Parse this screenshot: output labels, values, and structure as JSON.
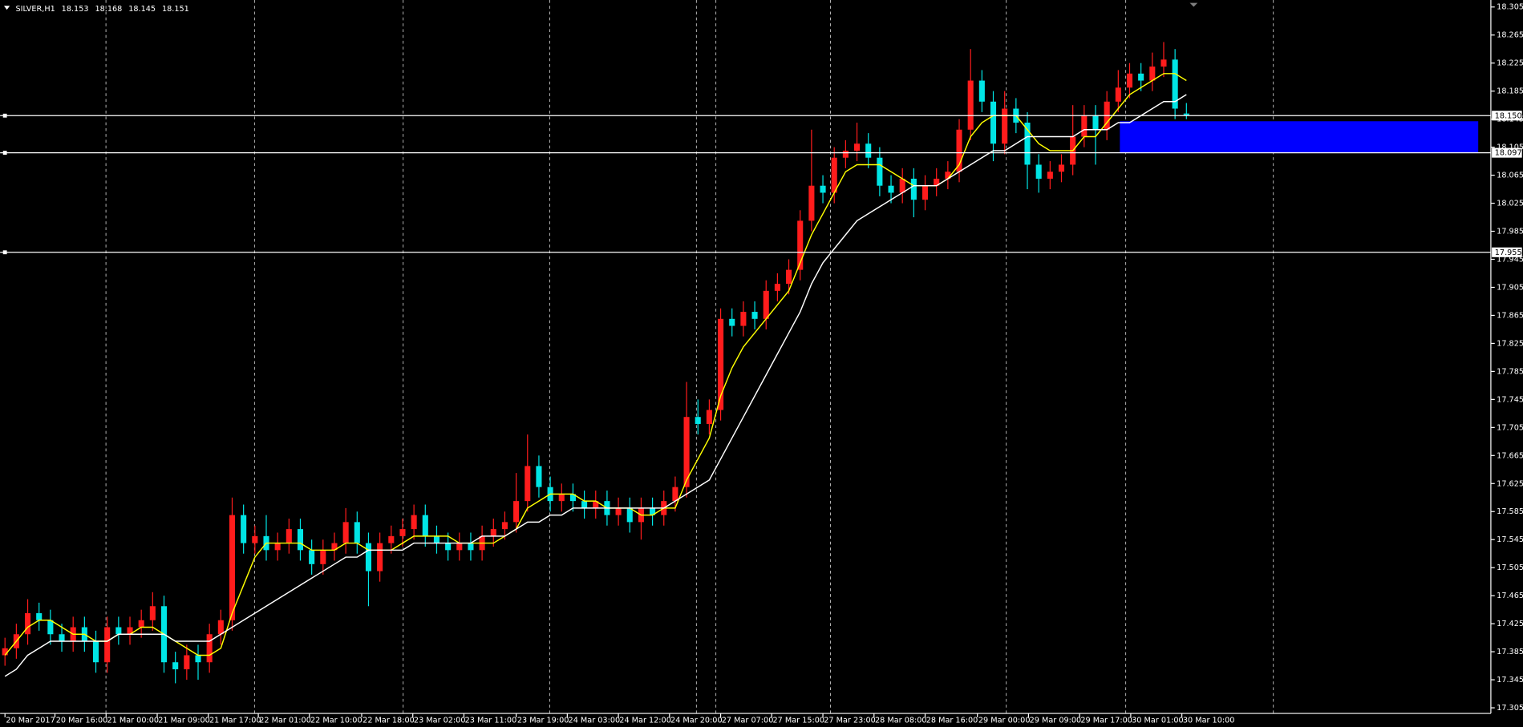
{
  "chart_data": {
    "type": "candlestick",
    "title": "SILVER,H1",
    "up_color": "#ff1c1c",
    "down_color": "#00e5e5",
    "open": [
      17.38,
      17.39,
      17.41,
      17.44,
      17.43,
      17.41,
      17.4,
      17.42,
      17.4,
      17.37,
      17.42,
      17.41,
      17.42,
      17.43,
      17.45,
      17.37,
      17.36,
      17.38,
      17.37,
      17.41,
      17.43,
      17.58,
      17.54,
      17.55,
      17.53,
      17.54,
      17.56,
      17.53,
      17.51,
      17.53,
      17.54,
      17.57,
      17.54,
      17.5,
      17.54,
      17.55,
      17.56,
      17.58,
      17.55,
      17.54,
      17.53,
      17.54,
      17.53,
      17.55,
      17.56,
      17.57,
      17.6,
      17.65,
      17.62,
      17.6,
      17.61,
      17.6,
      17.59,
      17.6,
      17.58,
      17.59,
      17.57,
      17.59,
      17.58,
      17.6,
      17.62,
      17.72,
      17.71,
      17.73,
      17.86,
      17.85,
      17.87,
      17.86,
      17.9,
      17.91,
      17.93,
      18.0,
      18.05,
      18.04,
      18.09,
      18.1,
      18.11,
      18.09,
      18.05,
      18.04,
      18.06,
      18.03,
      18.05,
      18.06,
      18.07,
      18.13,
      18.2,
      18.17,
      18.11,
      18.16,
      18.14,
      18.08,
      18.06,
      18.07,
      18.08,
      18.12,
      18.15,
      18.13,
      18.17,
      18.19,
      18.21,
      18.2,
      18.22,
      18.23,
      18.153
    ],
    "high": [
      17.405,
      17.425,
      17.46,
      17.455,
      17.445,
      17.425,
      17.435,
      17.435,
      17.415,
      17.435,
      17.435,
      17.435,
      17.445,
      17.47,
      17.465,
      17.385,
      17.395,
      17.395,
      17.425,
      17.445,
      17.605,
      17.595,
      17.565,
      17.58,
      17.555,
      17.575,
      17.575,
      17.545,
      17.545,
      17.555,
      17.59,
      17.585,
      17.555,
      17.555,
      17.565,
      17.575,
      17.595,
      17.595,
      17.565,
      17.555,
      17.555,
      17.555,
      17.565,
      17.575,
      17.585,
      17.64,
      17.695,
      17.665,
      17.635,
      17.625,
      17.625,
      17.615,
      17.615,
      17.615,
      17.605,
      17.605,
      17.605,
      17.605,
      17.615,
      17.635,
      17.77,
      17.745,
      17.745,
      17.875,
      17.875,
      17.885,
      17.885,
      17.915,
      17.925,
      17.945,
      18.015,
      18.13,
      18.065,
      18.105,
      18.115,
      18.14,
      18.125,
      18.105,
      18.065,
      18.075,
      18.075,
      18.065,
      18.075,
      18.085,
      18.145,
      18.245,
      18.215,
      18.185,
      18.185,
      18.175,
      18.155,
      18.095,
      18.085,
      18.095,
      18.165,
      18.165,
      18.165,
      18.185,
      18.215,
      18.225,
      18.225,
      18.24,
      18.255,
      18.245,
      18.168
    ],
    "low": [
      17.365,
      17.375,
      17.395,
      17.415,
      17.395,
      17.385,
      17.385,
      17.385,
      17.355,
      17.355,
      17.395,
      17.395,
      17.405,
      17.415,
      17.355,
      17.34,
      17.345,
      17.345,
      17.355,
      17.395,
      17.415,
      17.525,
      17.525,
      17.515,
      17.515,
      17.525,
      17.515,
      17.495,
      17.495,
      17.515,
      17.525,
      17.525,
      17.45,
      17.485,
      17.525,
      17.535,
      17.545,
      17.535,
      17.525,
      17.515,
      17.515,
      17.515,
      17.515,
      17.535,
      17.545,
      17.555,
      17.585,
      17.605,
      17.585,
      17.585,
      17.585,
      17.575,
      17.575,
      17.565,
      17.565,
      17.555,
      17.545,
      17.565,
      17.565,
      17.585,
      17.605,
      17.695,
      17.695,
      17.715,
      17.835,
      17.835,
      17.845,
      17.845,
      17.885,
      17.895,
      17.915,
      17.985,
      18.025,
      18.025,
      18.075,
      18.085,
      18.075,
      18.035,
      18.025,
      18.025,
      18.005,
      18.015,
      18.035,
      18.045,
      18.055,
      18.115,
      18.155,
      18.085,
      18.095,
      18.125,
      18.045,
      18.04,
      18.045,
      18.055,
      18.065,
      18.105,
      18.08,
      18.115,
      18.155,
      18.175,
      18.185,
      18.185,
      18.205,
      18.145,
      18.145
    ],
    "close": [
      17.39,
      17.41,
      17.44,
      17.43,
      17.41,
      17.4,
      17.42,
      17.4,
      17.37,
      17.42,
      17.41,
      17.42,
      17.43,
      17.45,
      17.37,
      17.36,
      17.38,
      17.37,
      17.41,
      17.43,
      17.58,
      17.54,
      17.55,
      17.53,
      17.54,
      17.56,
      17.53,
      17.51,
      17.53,
      17.54,
      17.57,
      17.54,
      17.5,
      17.54,
      17.55,
      17.56,
      17.58,
      17.55,
      17.54,
      17.53,
      17.54,
      17.53,
      17.55,
      17.56,
      17.57,
      17.6,
      17.65,
      17.62,
      17.6,
      17.61,
      17.6,
      17.59,
      17.6,
      17.58,
      17.59,
      17.57,
      17.59,
      17.58,
      17.6,
      17.62,
      17.72,
      17.71,
      17.73,
      17.86,
      17.85,
      17.87,
      17.86,
      17.9,
      17.91,
      17.93,
      18.0,
      18.05,
      18.04,
      18.09,
      18.1,
      18.11,
      18.09,
      18.05,
      18.04,
      18.06,
      18.03,
      18.05,
      18.06,
      18.07,
      18.13,
      18.2,
      18.17,
      18.11,
      18.16,
      18.14,
      18.08,
      18.06,
      18.07,
      18.08,
      18.12,
      18.15,
      18.13,
      18.17,
      18.19,
      18.21,
      18.2,
      18.22,
      18.23,
      18.16,
      18.151
    ],
    "series": [
      {
        "color": "#ffff00",
        "values": [
          17.38,
          17.4,
          17.42,
          17.43,
          17.43,
          17.42,
          17.41,
          17.41,
          17.4,
          17.4,
          17.41,
          17.41,
          17.42,
          17.42,
          17.41,
          17.4,
          17.39,
          17.38,
          17.38,
          17.39,
          17.44,
          17.48,
          17.52,
          17.54,
          17.54,
          17.54,
          17.54,
          17.53,
          17.53,
          17.53,
          17.54,
          17.54,
          17.53,
          17.53,
          17.53,
          17.54,
          17.55,
          17.55,
          17.55,
          17.55,
          17.54,
          17.54,
          17.54,
          17.54,
          17.55,
          17.56,
          17.59,
          17.6,
          17.61,
          17.61,
          17.61,
          17.6,
          17.6,
          17.59,
          17.59,
          17.59,
          17.58,
          17.58,
          17.59,
          17.59,
          17.63,
          17.66,
          17.69,
          17.75,
          17.79,
          17.82,
          17.84,
          17.86,
          17.88,
          17.9,
          17.94,
          17.98,
          18.01,
          18.04,
          18.07,
          18.08,
          18.08,
          18.08,
          18.07,
          18.06,
          18.05,
          18.05,
          18.05,
          18.06,
          18.08,
          18.12,
          18.14,
          18.15,
          18.15,
          18.15,
          18.13,
          18.11,
          18.1,
          18.1,
          18.1,
          18.12,
          18.12,
          18.14,
          18.16,
          18.18,
          18.19,
          18.2,
          18.21,
          18.21,
          18.2
        ]
      },
      {
        "color": "#ffffff",
        "values": [
          17.35,
          17.36,
          17.38,
          17.39,
          17.4,
          17.4,
          17.4,
          17.4,
          17.4,
          17.4,
          17.41,
          17.41,
          17.41,
          17.41,
          17.41,
          17.4,
          17.4,
          17.4,
          17.4,
          17.41,
          17.42,
          17.43,
          17.44,
          17.45,
          17.46,
          17.47,
          17.48,
          17.49,
          17.5,
          17.51,
          17.52,
          17.52,
          17.53,
          17.53,
          17.53,
          17.53,
          17.54,
          17.54,
          17.54,
          17.54,
          17.54,
          17.54,
          17.55,
          17.55,
          17.55,
          17.56,
          17.57,
          17.57,
          17.58,
          17.58,
          17.59,
          17.59,
          17.59,
          17.59,
          17.59,
          17.59,
          17.59,
          17.59,
          17.59,
          17.6,
          17.61,
          17.62,
          17.63,
          17.66,
          17.69,
          17.72,
          17.75,
          17.78,
          17.81,
          17.84,
          17.87,
          17.91,
          17.94,
          17.96,
          17.98,
          18.0,
          18.01,
          18.02,
          18.03,
          18.04,
          18.05,
          18.05,
          18.05,
          18.06,
          18.07,
          18.08,
          18.09,
          18.1,
          18.1,
          18.11,
          18.12,
          18.12,
          18.12,
          18.12,
          18.12,
          18.13,
          18.13,
          18.13,
          18.14,
          18.14,
          18.15,
          18.16,
          18.17,
          18.17,
          18.18
        ]
      }
    ],
    "ylim": [
      17.297,
      18.315
    ],
    "yticks": [
      18.305,
      18.265,
      18.225,
      18.185,
      18.145,
      18.105,
      18.065,
      18.025,
      17.985,
      17.945,
      17.905,
      17.865,
      17.825,
      17.785,
      17.745,
      17.705,
      17.665,
      17.625,
      17.585,
      17.545,
      17.505,
      17.465,
      17.425,
      17.385,
      17.345,
      17.305
    ],
    "xlim": [
      -0.43,
      130.8
    ],
    "xticks": [
      {
        "value": 0,
        "label": "20 Mar 2017"
      },
      {
        "value": 4.4,
        "label": "20 Mar 16:00"
      },
      {
        "value": 8.9,
        "label": "21 Mar 00:00"
      },
      {
        "value": 13.4,
        "label": "21 Mar 09:00"
      },
      {
        "value": 17.9,
        "label": "21 Mar 17:00"
      },
      {
        "value": 22.3,
        "label": "22 Mar 01:00"
      },
      {
        "value": 26.8,
        "label": "22 Mar 10:00"
      },
      {
        "value": 31.4,
        "label": "22 Mar 18:00"
      },
      {
        "value": 35.9,
        "label": "23 Mar 02:00"
      },
      {
        "value": 40.4,
        "label": "23 Mar 11:00"
      },
      {
        "value": 45,
        "label": "23 Mar 19:00"
      },
      {
        "value": 49.5,
        "label": "24 Mar 03:00"
      },
      {
        "value": 54,
        "label": "24 Mar 12:00"
      },
      {
        "value": 58.5,
        "label": "24 Mar 20:00"
      },
      {
        "value": 63,
        "label": "27 Mar 07:00"
      },
      {
        "value": 67.5,
        "label": "27 Mar 15:00"
      },
      {
        "value": 72,
        "label": "27 Mar 23:00"
      },
      {
        "value": 76.5,
        "label": "28 Mar 08:00"
      },
      {
        "value": 81,
        "label": "28 Mar 16:00"
      },
      {
        "value": 85.6,
        "label": "29 Mar 00:00"
      },
      {
        "value": 90.1,
        "label": "29 Mar 09:00"
      },
      {
        "value": 94.6,
        "label": "29 Mar 17:00"
      },
      {
        "value": 99.1,
        "label": "30 Mar 01:00"
      },
      {
        "value": 103.6,
        "label": "30 Mar 10:00"
      }
    ],
    "hlines": [
      {
        "value": 18.15,
        "label": "18.150"
      },
      18.097,
      17.955
    ],
    "zone": {
      "from": 18.097,
      "to": 18.142,
      "color": "#0000ff"
    }
  }
}
